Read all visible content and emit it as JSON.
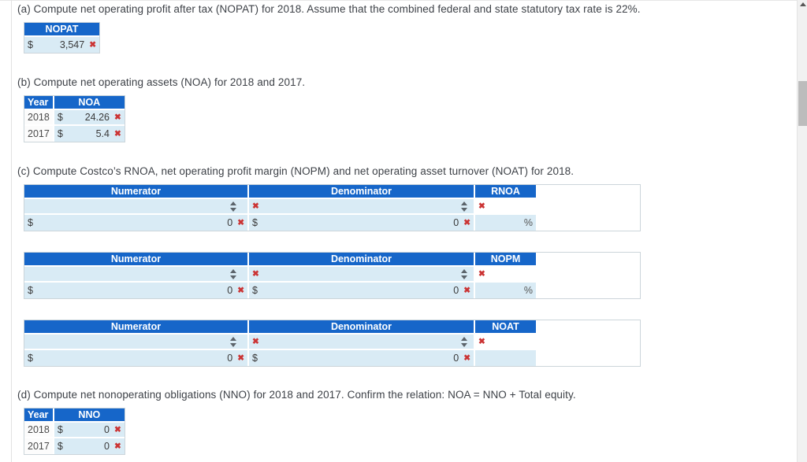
{
  "marks": {
    "incorrect_glyph": "✖"
  },
  "colors": {
    "header_blue": "#1666c9",
    "row_blue": "#d9ebf5",
    "error_red": "#cb3434"
  },
  "part_a": {
    "prompt": "(a) Compute net operating profit after tax (NOPAT) for 2018. Assume that the combined federal and state statutory tax rate is 22%.",
    "header": "NOPAT",
    "currency": "$",
    "value": "3,547"
  },
  "part_b": {
    "prompt": "(b) Compute net operating assets (NOA) for 2018 and 2017.",
    "year_header": "Year",
    "value_header": "NOA",
    "rows": [
      {
        "year": "2018",
        "currency": "$",
        "value": "24.26"
      },
      {
        "year": "2017",
        "currency": "$",
        "value": "5.4"
      }
    ]
  },
  "part_c": {
    "prompt": "(c) Compute Costco’s RNOA, net operating profit margin (NOPM) and net operating asset turnover (NOAT) for 2018.",
    "numerator_header": "Numerator",
    "denominator_header": "Denominator",
    "tables": [
      {
        "ratio_header": "RNOA",
        "numerator_currency": "$",
        "numerator_value": "0",
        "denominator_currency": "$",
        "denominator_value": "0",
        "ratio_unit": "%"
      },
      {
        "ratio_header": "NOPM",
        "numerator_currency": "$",
        "numerator_value": "0",
        "denominator_currency": "$",
        "denominator_value": "0",
        "ratio_unit": "%"
      },
      {
        "ratio_header": "NOAT",
        "numerator_currency": "$",
        "numerator_value": "0",
        "denominator_currency": "$",
        "denominator_value": "0",
        "ratio_unit": ""
      }
    ]
  },
  "part_d": {
    "prompt": "(d) Compute net nonoperating obligations (NNO) for 2018 and 2017. Confirm the relation: NOA = NNO + Total equity.",
    "year_header": "Year",
    "value_header": "NNO",
    "rows": [
      {
        "year": "2018",
        "currency": "$",
        "value": "0"
      },
      {
        "year": "2017",
        "currency": "$",
        "value": "0"
      }
    ]
  }
}
